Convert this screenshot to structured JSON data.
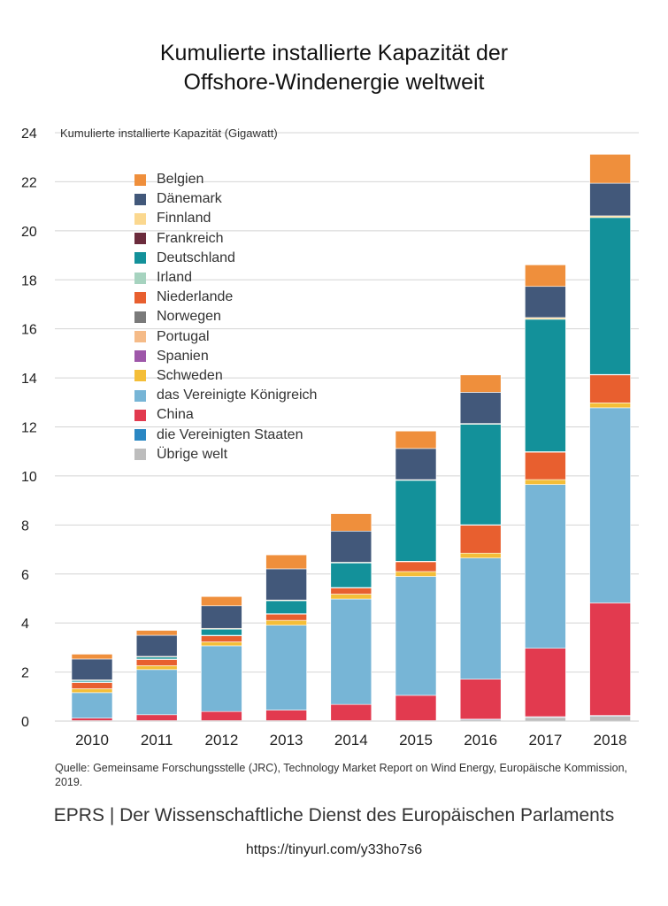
{
  "title_line1": "Kumulierte installierte Kapazität der",
  "title_line2": "Offshore-Windenergie weltweit",
  "source": "Quelle: Gemeinsame Forschungsstelle (JRC), Technology Market Report on Wind Energy, Europäische Kommission, 2019.",
  "footer": "EPRS | Der Wissenschaftliche Dienst des Europäischen Parlaments",
  "url": "https://tinyurl.com/y33ho7s6",
  "chart_data": {
    "type": "bar",
    "stacked": true,
    "title": "Kumulierte installierte Kapazität der Offshore-Windenergie weltweit",
    "ylabel": "Kumulierte installierte Kapazität (Gigawatt)",
    "xlabel": "",
    "ylim": [
      0,
      24
    ],
    "yticks": [
      0,
      2,
      4,
      6,
      8,
      10,
      12,
      14,
      16,
      18,
      20,
      22,
      24
    ],
    "grid": true,
    "categories": [
      "2010",
      "2011",
      "2012",
      "2013",
      "2014",
      "2015",
      "2016",
      "2017",
      "2018"
    ],
    "series": [
      {
        "name": "Übrige welt",
        "color": "#bdbdbd",
        "values": [
          0.02,
          0.02,
          0.02,
          0.02,
          0.02,
          0.02,
          0.05,
          0.15,
          0.2
        ]
      },
      {
        "name": "die Vereinigten Staaten",
        "color": "#2a87c3",
        "values": [
          0,
          0,
          0,
          0,
          0,
          0,
          0.03,
          0.03,
          0.03
        ]
      },
      {
        "name": "China",
        "color": "#e23a4f",
        "values": [
          0.1,
          0.24,
          0.37,
          0.43,
          0.66,
          1.03,
          1.63,
          2.79,
          4.59
        ]
      },
      {
        "name": "das Vereinigte Königreich",
        "color": "#77b5d6",
        "values": [
          1.04,
          1.84,
          2.68,
          3.46,
          4.3,
          4.85,
          4.94,
          6.68,
          7.96
        ]
      },
      {
        "name": "Schweden",
        "color": "#f4be38",
        "values": [
          0.16,
          0.16,
          0.16,
          0.2,
          0.2,
          0.2,
          0.2,
          0.2,
          0.2
        ]
      },
      {
        "name": "Spanien",
        "color": "#9e57a9",
        "values": [
          0,
          0,
          0,
          0,
          0,
          0,
          0,
          0,
          0
        ]
      },
      {
        "name": "Portugal",
        "color": "#f5bb88",
        "values": [
          0,
          0,
          0,
          0,
          0,
          0,
          0,
          0,
          0
        ]
      },
      {
        "name": "Norwegen",
        "color": "#7a7a7a",
        "values": [
          0,
          0,
          0,
          0,
          0,
          0,
          0,
          0,
          0
        ]
      },
      {
        "name": "Niederlande",
        "color": "#e85f2f",
        "values": [
          0.25,
          0.25,
          0.25,
          0.25,
          0.25,
          0.4,
          1.14,
          1.12,
          1.14
        ]
      },
      {
        "name": "Irland",
        "color": "#a6d3bf",
        "values": [
          0.02,
          0.02,
          0.02,
          0.02,
          0.02,
          0.02,
          0.02,
          0.02,
          0.02
        ]
      },
      {
        "name": "Deutschland",
        "color": "#13919a",
        "values": [
          0.06,
          0.08,
          0.25,
          0.53,
          1.0,
          3.3,
          4.1,
          5.4,
          6.4
        ]
      },
      {
        "name": "Frankreich",
        "color": "#6b2b3c",
        "values": [
          0,
          0,
          0,
          0,
          0,
          0,
          0,
          0,
          0
        ]
      },
      {
        "name": "Finnland",
        "color": "#fbd88f",
        "values": [
          0.03,
          0.03,
          0.03,
          0.03,
          0.03,
          0.03,
          0.03,
          0.07,
          0.07
        ]
      },
      {
        "name": "Dänemark",
        "color": "#42587a",
        "values": [
          0.85,
          0.86,
          0.92,
          1.27,
          1.27,
          1.27,
          1.27,
          1.27,
          1.33
        ]
      },
      {
        "name": "Belgien",
        "color": "#ef8f3c",
        "values": [
          0.2,
          0.2,
          0.38,
          0.57,
          0.71,
          0.71,
          0.71,
          0.88,
          1.18
        ]
      }
    ],
    "legend": [
      "Belgien",
      "Dänemark",
      "Finnland",
      "Frankreich",
      "Deutschland",
      "Irland",
      "Niederlande",
      "Norwegen",
      "Portugal",
      "Spanien",
      "Schweden",
      "das Vereinigte Königreich",
      "China",
      "die Vereinigten Staaten",
      "Übrige welt"
    ],
    "legend_position": "top-left"
  }
}
